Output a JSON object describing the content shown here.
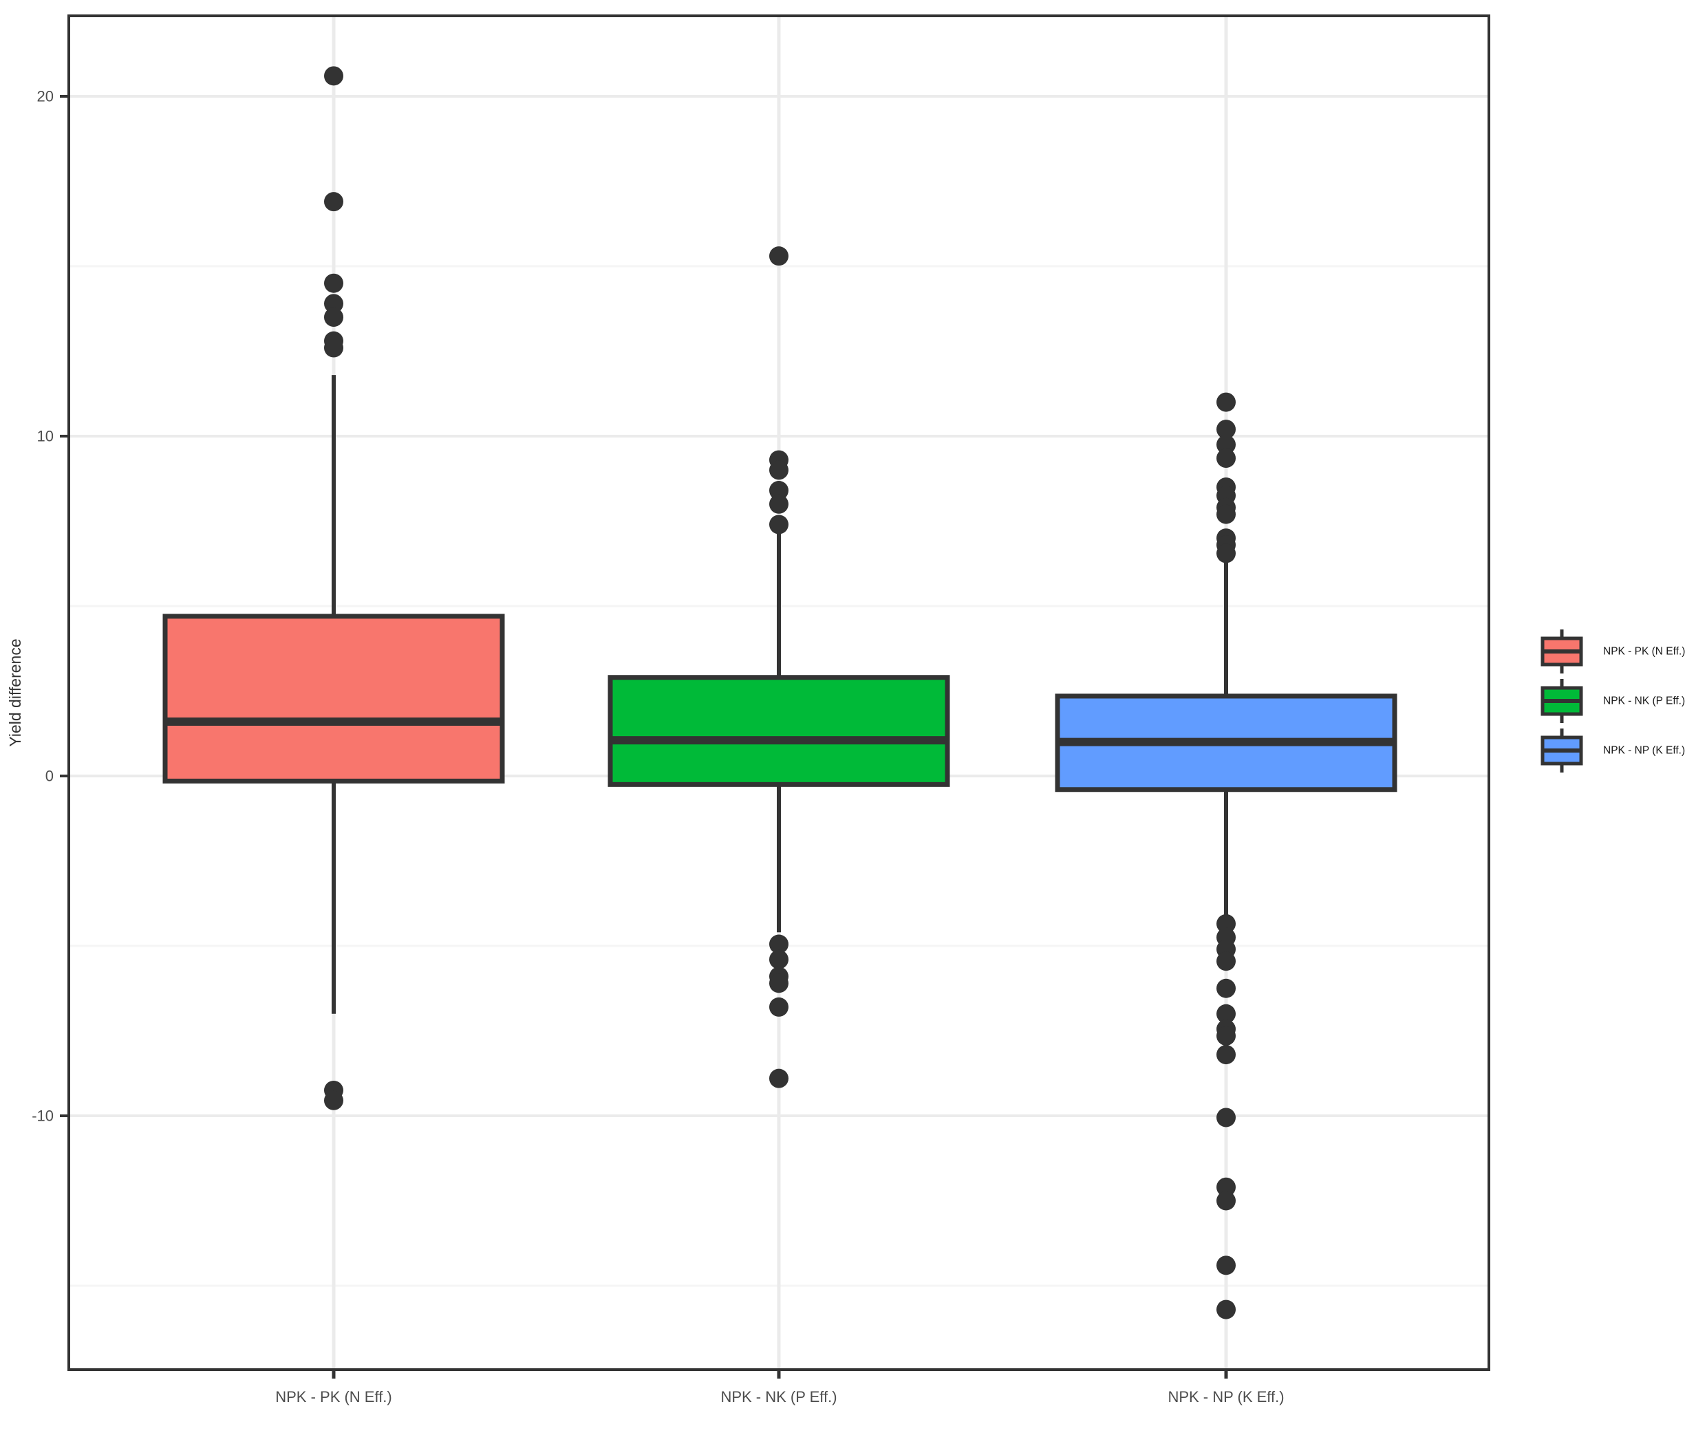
{
  "figure": {
    "background": "#FFFFFF"
  },
  "chart_data": {
    "type": "boxplot",
    "title": "",
    "xlabel": "",
    "ylabel": "Yield difference",
    "categories": [
      "NPK - PK (N Eff.)",
      "NPK - NK (P Eff.)",
      "NPK - NP (K Eff.)"
    ],
    "y_axis": {
      "major_ticks": [
        20,
        10,
        0,
        -10
      ],
      "minor_gridlines": [
        15,
        5,
        -5,
        -15
      ],
      "range": [
        -17.5,
        22.3
      ],
      "grid": true
    },
    "series": [
      {
        "name": "NPK - PK (N Eff.)",
        "fill_color": "#F8766D",
        "whisker_low": -7.0,
        "q1": -0.15,
        "median": 1.6,
        "q3": 4.7,
        "whisker_high": 11.8,
        "outliers": [
          20.6,
          16.9,
          14.5,
          13.9,
          13.5,
          12.8,
          12.6,
          -9.25,
          -9.55
        ]
      },
      {
        "name": "NPK - NK (P Eff.)",
        "fill_color": "#00BA38",
        "whisker_low": -4.6,
        "q1": -0.25,
        "median": 1.05,
        "q3": 2.9,
        "whisker_high": 7.25,
        "outliers": [
          15.3,
          9.3,
          9.0,
          8.4,
          8.0,
          7.4,
          -4.95,
          -5.4,
          -5.9,
          -6.1,
          -6.8,
          -8.9
        ]
      },
      {
        "name": "NPK - NP (K Eff.)",
        "fill_color": "#619CFF",
        "whisker_low": -4.2,
        "q1": -0.4,
        "median": 1.0,
        "q3": 2.35,
        "whisker_high": 6.35,
        "outliers": [
          11.0,
          10.2,
          9.75,
          9.35,
          8.5,
          8.25,
          7.9,
          7.7,
          7.0,
          6.8,
          6.55,
          -4.35,
          -4.75,
          -5.1,
          -5.45,
          -6.25,
          -7.0,
          -7.45,
          -7.65,
          -8.2,
          -10.05,
          -12.1,
          -12.5,
          -14.4,
          -15.7
        ]
      }
    ],
    "legend": {
      "position": "right",
      "title": "",
      "entries": [
        {
          "label": "NPK - PK (N Eff.)",
          "color": "#F8766D"
        },
        {
          "label": "NPK - NK (P Eff.)",
          "color": "#00BA38"
        },
        {
          "label": "NPK - NP (K Eff.)",
          "color": "#619CFF"
        }
      ]
    },
    "style": {
      "stroke_color": "#333333",
      "outlier_color": "#333333",
      "grid_major_color": "#EBEBEB",
      "grid_minor_color": "#F5F5F5",
      "panel_border_color": "#333333",
      "tick_label_color": "#4D4D4D",
      "axis_title_color": "#333333",
      "legend_text_color": "#1A1A1A",
      "panel_background": "#FFFFFF"
    }
  }
}
